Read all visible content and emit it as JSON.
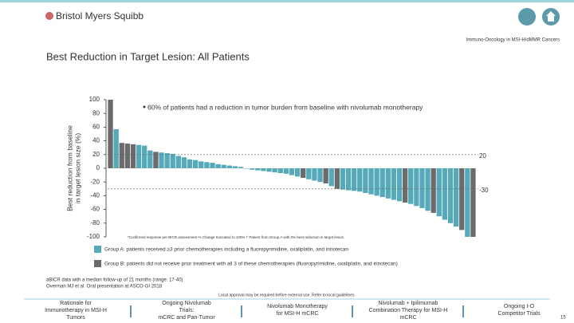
{
  "header": {
    "logo": "Bristol Myers Squibb",
    "section": "Immuno-Oncology in MSI-H/dMMR Cancers"
  },
  "title": "Best Reduction in Target Lesion: All Patients",
  "chart_data": {
    "type": "bar",
    "y_label": [
      "Best reduction from baseline",
      "in target lesion size (%)"
    ],
    "annotation": "60% of patients had a reduction in tumor burden from baseline with nivolumab monotherapy",
    "footnote": "*Confirmed response per BICR assessment   % Change truncated to 100%   † Patient from Group A with 0% best reduction in target lesion",
    "ylim": [
      -100,
      100
    ],
    "yticks": [
      -100,
      -80,
      -60,
      -40,
      -20,
      0,
      20,
      40,
      60,
      80,
      100
    ],
    "reference_lines": [
      20,
      -30
    ],
    "series": [
      {
        "name": "Group A: patients received ≥3 prior chemotherapies including a fluoropyrimidine, oxaliplatin, and irinotecan",
        "color": "#55a9b8",
        "values": [
          null,
          57,
          null,
          null,
          null,
          34,
          33,
          26,
          null,
          23,
          22,
          21,
          18,
          16,
          13,
          12,
          10,
          9,
          8,
          6,
          5,
          4,
          3,
          2,
          0,
          -2,
          -3,
          -4,
          -5,
          -6,
          -7,
          -8,
          -10,
          -12,
          null,
          -16,
          -18,
          -20,
          null,
          -26,
          null,
          -31,
          -32,
          -33,
          -34,
          -36,
          -38,
          -40,
          -42,
          -44,
          -46,
          -48,
          null,
          -52,
          -55,
          -58,
          -62,
          null,
          -70,
          -75,
          -80,
          -85,
          null,
          -100,
          null
        ]
      },
      {
        "name": "Group B: patients did not receive prior treatment with all 3 of these chemotherapies (fluoropyrimidine, oxaliplatin, and irinotecan)",
        "color": "#6b6b6b",
        "values": [
          100,
          null,
          37,
          36,
          35,
          null,
          null,
          null,
          24,
          null,
          null,
          null,
          null,
          null,
          null,
          null,
          null,
          null,
          null,
          null,
          null,
          null,
          null,
          null,
          null,
          null,
          null,
          null,
          null,
          null,
          null,
          null,
          null,
          null,
          -14,
          null,
          null,
          null,
          -22,
          null,
          -30,
          null,
          null,
          null,
          null,
          null,
          null,
          null,
          null,
          null,
          null,
          null,
          -50,
          null,
          null,
          null,
          null,
          -65,
          null,
          null,
          null,
          null,
          -90,
          null,
          -100
        ]
      }
    ]
  },
  "footnotes": [
    "aBICR data with a median follow-up of 21 months (range: 17-40)",
    "Overman MJ et al. Oral presentation at ASCO-GI 2018"
  ],
  "disclaimer": "Local approval may be required before external use. Refer to local guidelines.",
  "nav": [
    [
      "Rationale for",
      "Immunotherapy in MSI-H",
      "Tumors"
    ],
    [
      "Ongoing Nivolumab",
      "Trials:",
      "mCRC and Pan-Tumor"
    ],
    [
      "Nivolumab Monotherapy",
      "for MSI-H mCRC"
    ],
    [
      "Nivolumab + Ipilimumab",
      "Combination Therapy for MSI-H",
      "mCRC"
    ],
    [
      "Ongoing I-O",
      "Competitor Trials"
    ]
  ],
  "page_number": "15"
}
